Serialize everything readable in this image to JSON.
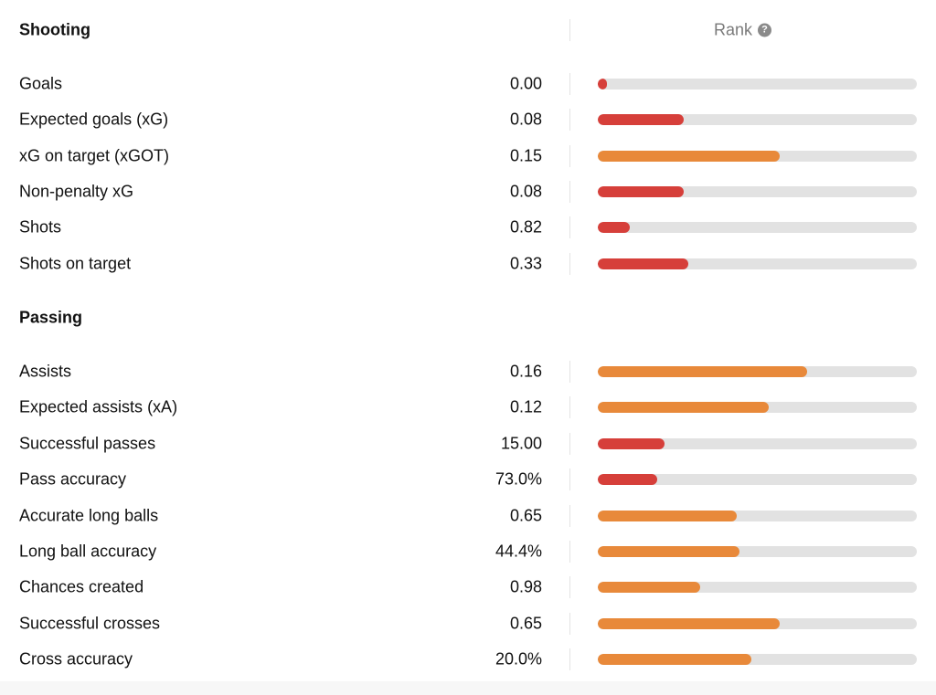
{
  "header": {
    "rank_label": "Rank",
    "help_icon": "question-circle-icon",
    "help_glyph": "?"
  },
  "colors": {
    "low": "#d63f3a",
    "mid": "#e8893a",
    "track": "#e2e2e2"
  },
  "sections": [
    {
      "title": "Shooting",
      "stats": [
        {
          "label": "Goals",
          "value": "0.00",
          "rank_fraction": 0.03,
          "level": "low"
        },
        {
          "label": "Expected goals (xG)",
          "value": "0.08",
          "rank_fraction": 0.27,
          "level": "low"
        },
        {
          "label": "xG on target (xGOT)",
          "value": "0.15",
          "rank_fraction": 0.57,
          "level": "mid"
        },
        {
          "label": "Non-penalty xG",
          "value": "0.08",
          "rank_fraction": 0.27,
          "level": "low"
        },
        {
          "label": "Shots",
          "value": "0.82",
          "rank_fraction": 0.1,
          "level": "low"
        },
        {
          "label": "Shots on target",
          "value": "0.33",
          "rank_fraction": 0.285,
          "level": "low"
        }
      ]
    },
    {
      "title": "Passing",
      "stats": [
        {
          "label": "Assists",
          "value": "0.16",
          "rank_fraction": 0.655,
          "level": "mid"
        },
        {
          "label": "Expected assists (xA)",
          "value": "0.12",
          "rank_fraction": 0.535,
          "level": "mid"
        },
        {
          "label": "Successful passes",
          "value": "15.00",
          "rank_fraction": 0.21,
          "level": "low"
        },
        {
          "label": "Pass accuracy",
          "value": "73.0%",
          "rank_fraction": 0.185,
          "level": "low"
        },
        {
          "label": "Accurate long balls",
          "value": "0.65",
          "rank_fraction": 0.435,
          "level": "mid"
        },
        {
          "label": "Long ball accuracy",
          "value": "44.4%",
          "rank_fraction": 0.445,
          "level": "mid"
        },
        {
          "label": "Chances created",
          "value": "0.98",
          "rank_fraction": 0.32,
          "level": "mid"
        },
        {
          "label": "Successful crosses",
          "value": "0.65",
          "rank_fraction": 0.57,
          "level": "mid"
        },
        {
          "label": "Cross accuracy",
          "value": "20.0%",
          "rank_fraction": 0.48,
          "level": "mid"
        }
      ]
    }
  ]
}
